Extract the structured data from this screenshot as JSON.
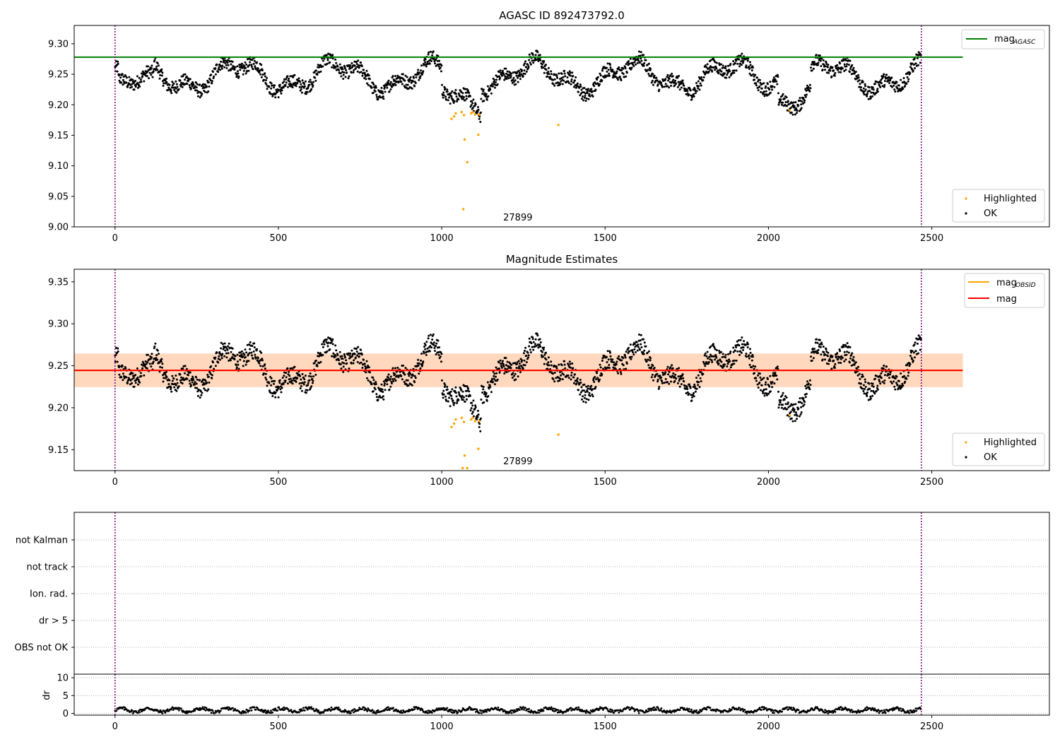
{
  "chart_data": [
    {
      "type": "scatter",
      "title": "AGASC ID 892473792.0",
      "xlim": [
        -125,
        2860
      ],
      "ylim": [
        9.0,
        9.33
      ],
      "xticks": [
        0,
        500,
        1000,
        1500,
        2000,
        2500
      ],
      "yticks": [
        "9.00",
        "9.05",
        "9.10",
        "9.15",
        "9.20",
        "9.25",
        "9.30"
      ],
      "hlines": [
        {
          "name": "mag_AGASC",
          "y": 9.278,
          "x_range": [
            -125,
            2595
          ],
          "color": "#008000"
        }
      ],
      "vlines": [
        0,
        2468
      ],
      "obsid_label": {
        "text": "27899",
        "x": 1233
      },
      "legend_top": [
        {
          "label_main": "mag",
          "label_sub": "AGASC",
          "color": "#008000"
        }
      ],
      "legend_bottom": [
        {
          "label": "Highlighted",
          "color": "#ffa500"
        },
        {
          "label": "OK",
          "color": "#000000"
        }
      ],
      "highlighted_points": [
        [
          1030,
          9.177
        ],
        [
          1038,
          9.181
        ],
        [
          1043,
          9.186
        ],
        [
          1061,
          9.188
        ],
        [
          1066,
          9.029
        ],
        [
          1068,
          9.183
        ],
        [
          1070,
          9.143
        ],
        [
          1078,
          9.106
        ],
        [
          1090,
          9.186
        ],
        [
          1095,
          9.188
        ],
        [
          1102,
          9.184
        ],
        [
          1112,
          9.151
        ],
        [
          1115,
          9.184
        ],
        [
          1357,
          9.167
        ],
        [
          2065,
          9.191
        ]
      ],
      "ok_series_note_skip": true
    },
    {
      "type": "scatter",
      "title": "Magnitude Estimates",
      "xlim": [
        -125,
        2860
      ],
      "ylim": [
        9.125,
        9.365
      ],
      "xticks": [
        0,
        500,
        1000,
        1500,
        2000,
        2500
      ],
      "yticks": [
        "9.15",
        "9.20",
        "9.25",
        "9.30",
        "9.35"
      ],
      "hlines": [
        {
          "name": "mag_OBSID",
          "y": 9.2445,
          "x_range": [
            -125,
            2595
          ],
          "color": "#ffa500"
        },
        {
          "name": "mag",
          "y": 9.2445,
          "x_range": [
            -125,
            2595
          ],
          "color": "#ff0000"
        }
      ],
      "bands": [
        {
          "y0": 9.2245,
          "y1": 9.2645,
          "color": "#ffc0cb",
          "opacity": 0.45
        },
        {
          "y0": 9.2245,
          "y1": 9.2645,
          "color": "#ffa500",
          "opacity": 0.18
        }
      ],
      "vlines": [
        0,
        2468
      ],
      "obsid_label": {
        "text": "27899",
        "x": 1233
      },
      "legend_top": [
        {
          "label_main": "mag",
          "label_sub": "OBSID",
          "color": "#ffa500"
        },
        {
          "label_main": "mag",
          "label_sub": "",
          "color": "#ff0000"
        }
      ],
      "legend_bottom": [
        {
          "label": "Highlighted",
          "color": "#ffa500"
        },
        {
          "label": "OK",
          "color": "#000000"
        }
      ],
      "highlighted_points": [
        [
          1030,
          9.177
        ],
        [
          1038,
          9.181
        ],
        [
          1043,
          9.186
        ],
        [
          1061,
          9.188
        ],
        [
          1064,
          9.128
        ],
        [
          1068,
          9.183
        ],
        [
          1070,
          9.143
        ],
        [
          1078,
          9.128
        ],
        [
          1090,
          9.186
        ],
        [
          1095,
          9.188
        ],
        [
          1102,
          9.184
        ],
        [
          1112,
          9.151
        ],
        [
          1115,
          9.184
        ],
        [
          1357,
          9.168
        ],
        [
          2065,
          9.191
        ]
      ]
    },
    {
      "type": "scatter",
      "title": "",
      "xlim": [
        -125,
        2860
      ],
      "categories": [
        "OBS not OK",
        "dr > 5",
        "Ion. rad.",
        "not track",
        "not Kalman"
      ],
      "vlines": [
        0,
        2468
      ]
    },
    {
      "type": "scatter",
      "title": "",
      "ylabel": "dr",
      "xlim": [
        -125,
        2860
      ],
      "ylim": [
        -0.5,
        11
      ],
      "xticks": [
        0,
        500,
        1000,
        1500,
        2000,
        2500
      ],
      "yticks": [
        "0",
        "5",
        "10"
      ],
      "vlines": [
        0,
        2468
      ]
    }
  ]
}
